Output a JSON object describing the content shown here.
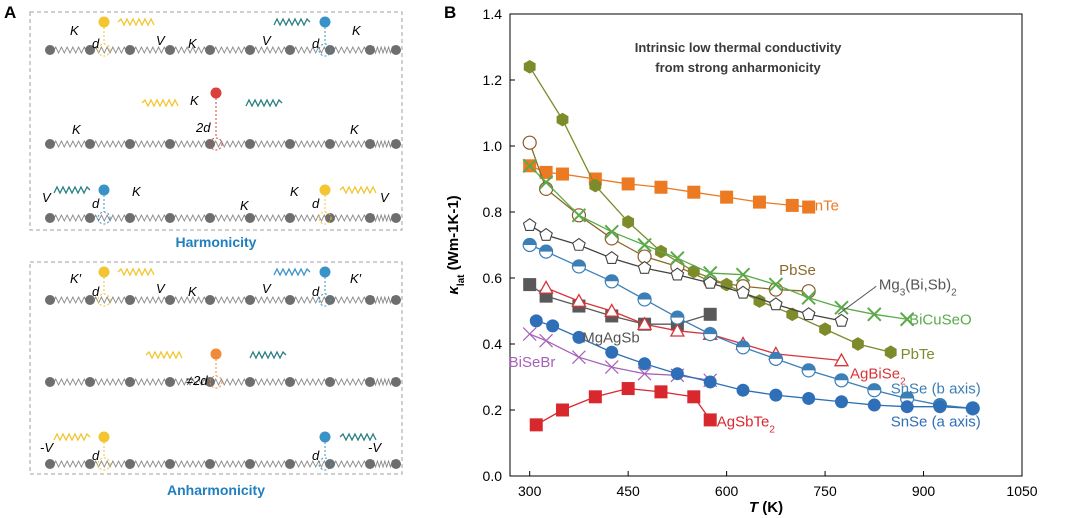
{
  "panel_a": {
    "label": "A",
    "harmonicity": {
      "title": "Harmonicity",
      "k": "K",
      "d": "d",
      "v": "V",
      "two_d": "2d"
    },
    "anharmonicity": {
      "title": "Anharmonicity",
      "k_prime": "K′",
      "k": "K",
      "d": "d",
      "v": "V",
      "neg_v": "-V",
      "neq_2d": "≠2d"
    },
    "colors": {
      "box": "#9a9a9a",
      "atom": "#6e6e6e",
      "spring": "#8a8a8a",
      "yellow": "#f2c531",
      "blue": "#3a93c8",
      "red": "#d9403b",
      "orange": "#ee8a38",
      "teal": "#2a7f84",
      "title": "#1f7fc0"
    }
  },
  "chart_data": {
    "panel_label": "B",
    "type": "scatter",
    "title": "Intrinsic low thermal conductivity from strong anharmonicity",
    "title_lines": [
      "Intrinsic low thermal conductivity",
      "from strong anharmonicity"
    ],
    "xlabel": "T (K)",
    "xlabel_main": "T",
    "xlabel_unit": " (K)",
    "ylabel": "κ_lat (Wm⁻¹K⁻¹)",
    "ylabel_main": "κ",
    "ylabel_sub": "lat",
    "ylabel_unit": " (Wm-1K-1)",
    "xlim": [
      270,
      1050
    ],
    "ylim": [
      0,
      1.4
    ],
    "xticks": [
      300,
      450,
      600,
      750,
      900,
      1050
    ],
    "yticks": [
      0.0,
      0.2,
      0.4,
      0.6,
      0.8,
      1.0,
      1.2,
      1.4
    ],
    "ytick_labels": [
      "0.0",
      "0.2",
      "0.4",
      "0.6",
      "0.8",
      "1.0",
      "1.2",
      "1.4"
    ],
    "series": [
      {
        "name": "InTe",
        "label_parts": [
          "InTe"
        ],
        "color": "#ec7a22",
        "marker": "square",
        "x": [
          300,
          325,
          350,
          400,
          450,
          500,
          550,
          600,
          650,
          700,
          725
        ],
        "y": [
          0.94,
          0.92,
          0.915,
          0.9,
          0.885,
          0.875,
          0.86,
          0.845,
          0.83,
          0.82,
          0.815
        ],
        "label_x": 728,
        "label_y": 0.82
      },
      {
        "name": "PbSe",
        "label_parts": [
          "PbSe"
        ],
        "color": "#f3a76a",
        "marker": "circle-open-dark",
        "x": [
          300,
          325,
          375,
          425,
          475,
          525,
          575,
          625,
          675,
          725
        ],
        "y": [
          1.01,
          0.87,
          0.79,
          0.72,
          0.665,
          0.635,
          0.59,
          0.575,
          0.565,
          0.56
        ],
        "label_x": 680,
        "label_y": 0.625
      },
      {
        "name": "PbTe",
        "label_parts": [
          "PbTe"
        ],
        "color": "#7d8b2a",
        "marker": "hexagon",
        "x": [
          300,
          350,
          400,
          450,
          500,
          550,
          600,
          650,
          700,
          750,
          800,
          850
        ],
        "y": [
          1.24,
          1.08,
          0.88,
          0.77,
          0.68,
          0.62,
          0.58,
          0.53,
          0.49,
          0.445,
          0.4,
          0.375
        ],
        "label_x": 865,
        "label_y": 0.37
      },
      {
        "name": "BiCuSeO",
        "label_parts": [
          "BiCuSeO"
        ],
        "color": "#5aaa4a",
        "marker": "x-square",
        "x": [
          300,
          325,
          375,
          425,
          475,
          525,
          575,
          625,
          675,
          725,
          775,
          825,
          875
        ],
        "y": [
          0.94,
          0.89,
          0.79,
          0.74,
          0.7,
          0.66,
          0.615,
          0.61,
          0.58,
          0.54,
          0.51,
          0.49,
          0.475
        ],
        "label_x": 878,
        "label_y": 0.475
      },
      {
        "name": "Mg3(Bi,Sb)2",
        "label_parts": [
          "Mg",
          "3",
          "(Bi,Sb)",
          "2"
        ],
        "color": "#555555",
        "marker": "pentagon",
        "x": [
          300,
          325,
          375,
          425,
          475,
          525,
          575,
          625,
          675,
          725,
          775
        ],
        "y": [
          0.76,
          0.73,
          0.7,
          0.66,
          0.63,
          0.61,
          0.585,
          0.555,
          0.52,
          0.49,
          0.47
        ],
        "label_x": 832,
        "label_y": 0.58
      },
      {
        "name": "MgAgSb",
        "label_parts": [
          "MgAgSb"
        ],
        "color": "#595959",
        "marker": "square-gray",
        "x": [
          300,
          325,
          375,
          425,
          475,
          525,
          575
        ],
        "y": [
          0.58,
          0.545,
          0.515,
          0.485,
          0.46,
          0.46,
          0.49
        ],
        "label_x": 380,
        "label_y": 0.42
      },
      {
        "name": "AgBiSe2",
        "label_parts": [
          "AgBiSe",
          "2"
        ],
        "color": "#d8343a",
        "marker": "triangle",
        "x": [
          325,
          375,
          425,
          475,
          525,
          575,
          625,
          675,
          775
        ],
        "y": [
          0.57,
          0.53,
          0.5,
          0.46,
          0.44,
          0.43,
          0.4,
          0.37,
          0.35
        ],
        "label_x": 788,
        "label_y": 0.31
      },
      {
        "name": "SnSe (b axis)",
        "label_parts": [
          "SnSe (b axis)"
        ],
        "color": "#3b7fb6",
        "marker": "circle-half",
        "x": [
          300,
          325,
          375,
          425,
          475,
          525,
          575,
          625,
          675,
          725,
          775,
          825,
          875,
          925,
          975
        ],
        "y": [
          0.7,
          0.68,
          0.635,
          0.59,
          0.535,
          0.48,
          0.43,
          0.39,
          0.355,
          0.32,
          0.29,
          0.26,
          0.235,
          0.215,
          0.205
        ],
        "label_x": 850,
        "label_y": 0.265
      },
      {
        "name": "BiSeBr",
        "label_parts": [
          "BiSeBr"
        ],
        "color": "#a562b8",
        "marker": "x-open",
        "x": [
          300,
          325,
          375,
          425,
          475,
          525,
          575
        ],
        "y": [
          0.43,
          0.41,
          0.36,
          0.33,
          0.31,
          0.305,
          0.29
        ],
        "label_x": 268,
        "label_y": 0.345
      },
      {
        "name": "SnSe (a axis)",
        "label_parts": [
          "SnSe (a axis)"
        ],
        "color": "#2f6fb8",
        "marker": "circle",
        "x": [
          310,
          335,
          375,
          425,
          475,
          525,
          575,
          625,
          675,
          725,
          775,
          825,
          875,
          925,
          975
        ],
        "y": [
          0.47,
          0.455,
          0.42,
          0.375,
          0.34,
          0.31,
          0.285,
          0.26,
          0.245,
          0.235,
          0.225,
          0.215,
          0.21,
          0.21,
          0.205
        ],
        "label_x": 850,
        "label_y": 0.165
      },
      {
        "name": "AgSbTe2",
        "label_parts": [
          "AgSbTe",
          "2"
        ],
        "color": "#d9272e",
        "marker": "square-red",
        "x": [
          310,
          350,
          400,
          450,
          500,
          550,
          575
        ],
        "y": [
          0.155,
          0.2,
          0.24,
          0.265,
          0.255,
          0.24,
          0.17
        ],
        "label_x": 585,
        "label_y": 0.165
      }
    ]
  }
}
